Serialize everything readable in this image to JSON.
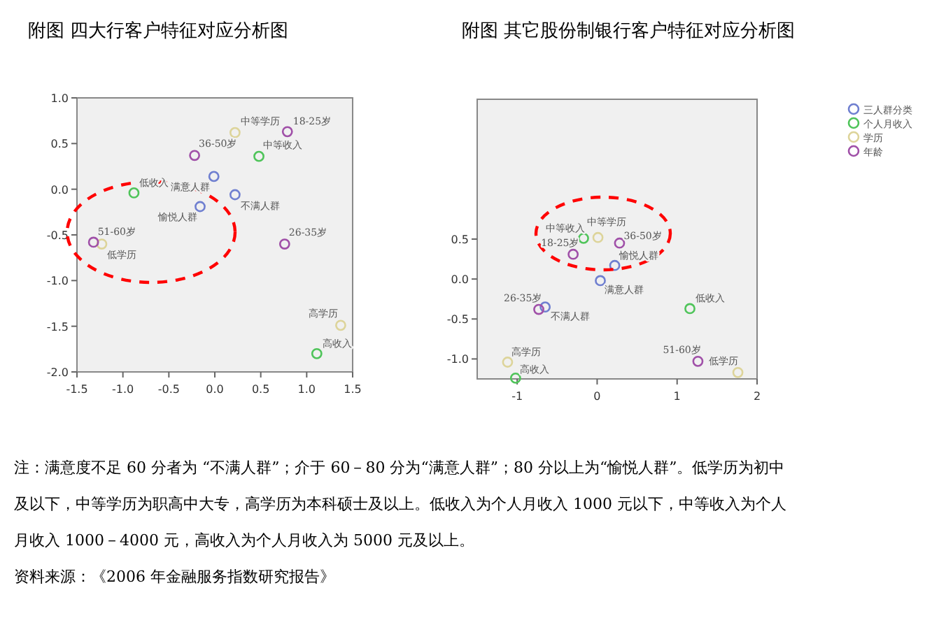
{
  "chart_data": [
    {
      "type": "scatter",
      "title": "附图  四大行客户特征对应分析图",
      "marker": "circle",
      "grid": false,
      "legend": false,
      "xlim": [
        -1.5,
        1.5
      ],
      "ylim": [
        -2.0,
        1.0
      ],
      "xticks": [
        {
          "value": -1.5,
          "label": "-1.5"
        },
        {
          "value": -1,
          "label": "-1.0"
        },
        {
          "value": -0.5,
          "label": "-0.5"
        },
        {
          "value": 0,
          "label": "0.0"
        },
        {
          "value": 0.5,
          "label": "0.5"
        },
        {
          "value": 1,
          "label": "1.0"
        },
        {
          "value": 1.5,
          "label": "1.5"
        }
      ],
      "yticks": [
        {
          "value": 1,
          "label": "1.0"
        },
        0.5,
        {
          "value": 0,
          "label": "0.0"
        },
        -0.5,
        {
          "value": -1,
          "label": "-1.0"
        },
        -1.5,
        {
          "value": -2,
          "label": "-2.0"
        }
      ],
      "series": [
        {
          "color": "#6f7fd0",
          "x": [
            -0.01,
            0.22,
            -0.16
          ],
          "values": [
            0.14,
            -0.06,
            -0.19
          ]
        },
        {
          "color": "#4fc45a",
          "x": [
            -0.88,
            0.48,
            1.11
          ],
          "values": [
            -0.04,
            0.36,
            -1.8
          ]
        },
        {
          "color": "#ddd49a",
          "x": [
            0.22,
            -1.23,
            1.37
          ],
          "values": [
            0.62,
            -0.6,
            -1.49
          ]
        },
        {
          "color": "#a050a8",
          "x": [
            0.79,
            -0.22,
            -1.32,
            0.76
          ],
          "values": [
            0.63,
            0.37,
            -0.58,
            -0.6
          ]
        }
      ],
      "annotations": [
        {
          "text": "满意人群",
          "x": -0.01,
          "y": 0.14
        },
        {
          "text": "不满人群",
          "x": 0.22,
          "y": -0.06
        },
        {
          "text": "愉悦人群",
          "x": -0.16,
          "y": -0.19
        },
        {
          "text": "低收入",
          "x": -0.88,
          "y": -0.04
        },
        {
          "text": "中等收入",
          "x": 0.48,
          "y": 0.36
        },
        {
          "text": "高收入",
          "x": 1.11,
          "y": -1.8
        },
        {
          "text": "中等学历",
          "x": 0.22,
          "y": 0.62
        },
        {
          "text": "低学历",
          "x": -1.23,
          "y": -0.6
        },
        {
          "text": "高学历",
          "x": 1.37,
          "y": -1.49
        },
        {
          "text": "18-25岁",
          "x": 0.79,
          "y": 0.63
        },
        {
          "text": "36-50岁",
          "x": -0.22,
          "y": 0.37
        },
        {
          "text": "51-60岁",
          "x": -1.32,
          "y": -0.58
        },
        {
          "text": "26-35岁",
          "x": 0.76,
          "y": -0.6
        }
      ]
    },
    {
      "type": "scatter",
      "title": "附图  其它股份制银行客户特征对应分析图",
      "marker": "circle",
      "grid": false,
      "legend": "right",
      "xlim": [
        -1.5,
        2
      ],
      "ylim": [
        -1.25,
        2.25
      ],
      "xticks": [
        -1,
        0,
        1,
        2
      ],
      "yticks": [
        0.5,
        {
          "value": 0,
          "label": "0.0"
        },
        -0.5,
        {
          "value": -1,
          "label": "-1.0"
        }
      ],
      "series": [
        {
          "name": "三人群分类",
          "color": "#6f7fd0",
          "x": [
            0.22,
            0.04,
            -0.65
          ],
          "values": [
            0.17,
            -0.02,
            -0.35
          ]
        },
        {
          "name": "个人月收入",
          "color": "#4fc45a",
          "x": [
            -0.17,
            1.16,
            -1.02
          ],
          "values": [
            0.51,
            -0.37,
            -1.24
          ]
        },
        {
          "name": "学历",
          "color": "#ddd49a",
          "x": [
            0.01,
            -1.12,
            1.76
          ],
          "values": [
            0.52,
            -1.04,
            -1.17
          ]
        },
        {
          "name": "年龄",
          "color": "#a050a8",
          "x": [
            -0.3,
            0.28,
            -0.73,
            1.26
          ],
          "values": [
            0.31,
            0.45,
            -0.38,
            -1.03
          ]
        }
      ],
      "annotations": [
        {
          "text": "愉悦人群",
          "x": 0.22,
          "y": 0.17
        },
        {
          "text": "满意人群",
          "x": 0.04,
          "y": -0.02
        },
        {
          "text": "不满人群",
          "x": -0.65,
          "y": -0.35
        },
        {
          "text": "中等收入",
          "x": -0.17,
          "y": 0.51
        },
        {
          "text": "低收入",
          "x": 1.16,
          "y": -0.37
        },
        {
          "text": "高收入",
          "x": -1.02,
          "y": -1.24
        },
        {
          "text": "中等学历",
          "x": 0.01,
          "y": 0.52
        },
        {
          "text": "高学历",
          "x": -1.12,
          "y": -1.04
        },
        {
          "text": "低学历",
          "x": 1.76,
          "y": -1.17
        },
        {
          "text": "18-25岁",
          "x": -0.3,
          "y": 0.31
        },
        {
          "text": "36-50岁",
          "x": 0.28,
          "y": 0.45
        },
        {
          "text": "26-35岁",
          "x": -0.73,
          "y": -0.38
        },
        {
          "text": "51-60岁",
          "x": 1.26,
          "y": -1.03
        },
        "注：满意度不足 60 分者为 “不满人群”；介于 60－80 分为“满意人群”；80 分以上为“愉悦人群”。低学历为初中及以下，中等学历为职高中大专，高学历为本科硕士及以上。低收入为个人月收入 1000 元以下，中等收入为个人月收入 1000－4000 元，高收入为个人月收入为 5000 元及以上。",
        "资料来源：《2006 年金融服务指数研究报告》"
      ]
    }
  ]
}
